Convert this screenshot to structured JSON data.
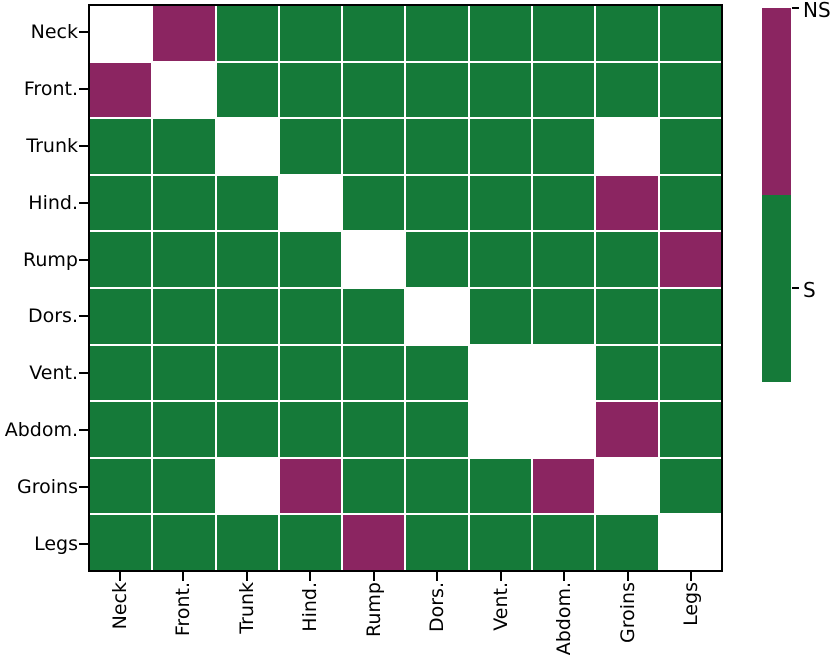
{
  "chart_data": {
    "type": "heatmap",
    "title": "",
    "xlabel": "",
    "ylabel": "",
    "x_categories": [
      "Neck",
      "Front.",
      "Trunk",
      "Hind.",
      "Rump",
      "Dors.",
      "Vent.",
      "Abdom.",
      "Groins",
      "Legs"
    ],
    "y_categories": [
      "Neck",
      "Front.",
      "Trunk",
      "Hind.",
      "Rump",
      "Dors.",
      "Vent.",
      "Abdom.",
      "Groins",
      "Legs"
    ],
    "cell_values": [
      [
        "blank",
        "NS",
        "S",
        "S",
        "S",
        "S",
        "S",
        "S",
        "S",
        "S"
      ],
      [
        "NS",
        "blank",
        "S",
        "S",
        "S",
        "S",
        "S",
        "S",
        "S",
        "S"
      ],
      [
        "S",
        "S",
        "blank",
        "S",
        "S",
        "S",
        "S",
        "S",
        "blank",
        "S"
      ],
      [
        "S",
        "S",
        "S",
        "blank",
        "S",
        "S",
        "S",
        "S",
        "NS",
        "S"
      ],
      [
        "S",
        "S",
        "S",
        "S",
        "blank",
        "S",
        "S",
        "S",
        "S",
        "NS"
      ],
      [
        "S",
        "S",
        "S",
        "S",
        "S",
        "blank",
        "S",
        "S",
        "S",
        "S"
      ],
      [
        "S",
        "S",
        "S",
        "S",
        "S",
        "S",
        "blank",
        "blank",
        "S",
        "S"
      ],
      [
        "S",
        "S",
        "S",
        "S",
        "S",
        "S",
        "blank",
        "blank",
        "NS",
        "S"
      ],
      [
        "S",
        "S",
        "blank",
        "NS",
        "S",
        "S",
        "S",
        "NS",
        "blank",
        "S"
      ],
      [
        "S",
        "S",
        "S",
        "S",
        "NS",
        "S",
        "S",
        "S",
        "S",
        "blank"
      ]
    ],
    "value_colors": {
      "S": "#157A39",
      "NS": "#8B2561",
      "blank": "#FFFFFF"
    },
    "grid_line_color": "#FFFFFF",
    "axes_frame_color": "#000000",
    "colorbar": {
      "position": "right",
      "segments": [
        {
          "value": "NS",
          "color": "#8B2561"
        },
        {
          "value": "S",
          "color": "#157A39"
        }
      ],
      "ticks": [
        {
          "label": "NS",
          "position": 0.0
        },
        {
          "label": "S",
          "position": 0.749
        }
      ]
    }
  }
}
